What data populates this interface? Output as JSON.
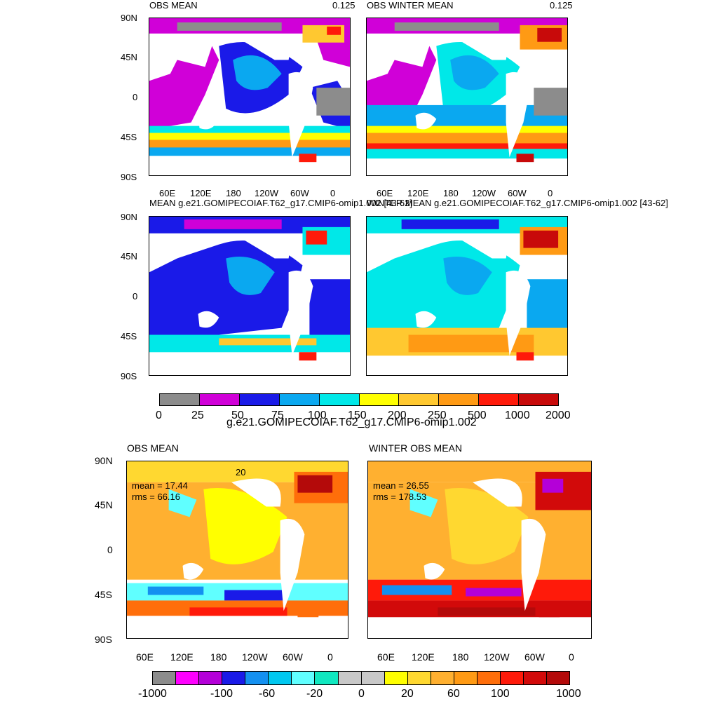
{
  "top_section": {
    "panel_a": {
      "title": "OBS MEAN",
      "corner_value": "0.125"
    },
    "panel_b": {
      "title": "OBS WINTER MEAN",
      "corner_value": "0.125"
    },
    "panel_c": {
      "title": "MEAN g.e21.GOMIPECOIAF.T62_g17.CMIP6-omip1.002 [43-62]"
    },
    "panel_d": {
      "title": "WINTER MEAN g.e21.GOMIPECOIAF.T62_g17.CMIP6-omip1.002 [43-62]"
    },
    "lat_labels": [
      "90N",
      "45N",
      "0",
      "45S",
      "90S"
    ],
    "lon_labels": [
      "60E",
      "120E",
      "180",
      "120W",
      "60W",
      "0"
    ],
    "colorbar": {
      "labels": [
        "0",
        "25",
        "50",
        "75",
        "100",
        "150",
        "200",
        "250",
        "500",
        "1000",
        "2000"
      ],
      "colors": [
        "#8c8c8c",
        "#d000d8",
        "#1a1ae8",
        "#0aa8f0",
        "#00e8e8",
        "#ffff00",
        "#ffc830",
        "#ff9a14",
        "#ff1a0a",
        "#c80a0a"
      ],
      "subtitle": "g.e21.GOMIPECOIAF.T62_g17.CMIP6-omip1.002"
    }
  },
  "bottom_section": {
    "panel_e": {
      "title": "OBS MEAN",
      "contour_label": "20",
      "mean_text": "mean = 17.44",
      "rms_text": "rms = 66.16"
    },
    "panel_f": {
      "title": "WINTER OBS MEAN",
      "mean_text": "mean = 26.55",
      "rms_text": "rms = 178.53"
    },
    "lat_labels": [
      "90N",
      "45N",
      "0",
      "45S",
      "90S"
    ],
    "lon_labels": [
      "60E",
      "120E",
      "180",
      "120W",
      "60W",
      "0"
    ],
    "colorbar": {
      "labels": [
        "-1000",
        "-100",
        "-60",
        "-20",
        "0",
        "20",
        "60",
        "100",
        "1000"
      ],
      "colors": [
        "#8c8c8c",
        "#ff00ff",
        "#b400d8",
        "#1a1ae8",
        "#1490f0",
        "#00c8f0",
        "#60ffff",
        "#10e8c0",
        "#c8c8c8",
        "#c8c8c8",
        "#ffff00",
        "#ffd830",
        "#ffb030",
        "#ff9a14",
        "#ff6e0a",
        "#ff1a0a",
        "#d20a0a",
        "#b40a0a"
      ]
    }
  }
}
